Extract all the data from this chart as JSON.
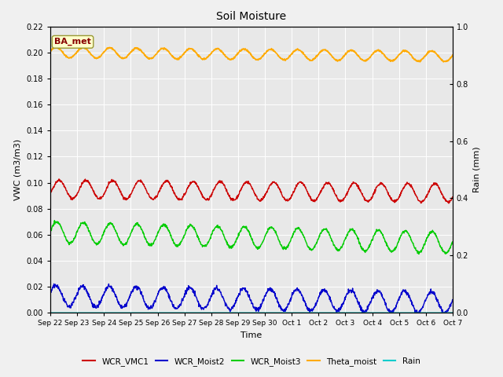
{
  "title": "Soil Moisture",
  "xlabel": "Time",
  "ylabel_left": "VWC (m3/m3)",
  "ylabel_right": "Rain (mm)",
  "ylim_left": [
    0.0,
    0.22
  ],
  "ylim_right": [
    0.0,
    1.0
  ],
  "annotation_text": "BA_met",
  "annotation_bg": "#ffffcc",
  "annotation_border": "#999933",
  "annotation_fg": "#880000",
  "fig_bg_color": "#f0f0f0",
  "plot_bg_color": "#e8e8e8",
  "grid_color": "#ffffff",
  "x_tick_labels": [
    "Sep 22",
    "Sep 23",
    "Sep 24",
    "Sep 25",
    "Sep 26",
    "Sep 27",
    "Sep 28",
    "Sep 29",
    "Sep 30",
    "Oct 1",
    "Oct 2",
    "Oct 3",
    "Oct 4",
    "Oct 5",
    "Oct 6",
    "Oct 7"
  ],
  "wcr_vmc1_color": "#cc0000",
  "wcr_moist2_color": "#0000cc",
  "wcr_moist3_color": "#00cc00",
  "theta_moist_color": "#ffaa00",
  "rain_color": "#00cccc",
  "legend_labels": [
    "WCR_VMC1",
    "WCR_Moist2",
    "WCR_Moist3",
    "Theta_moist",
    "Rain"
  ]
}
